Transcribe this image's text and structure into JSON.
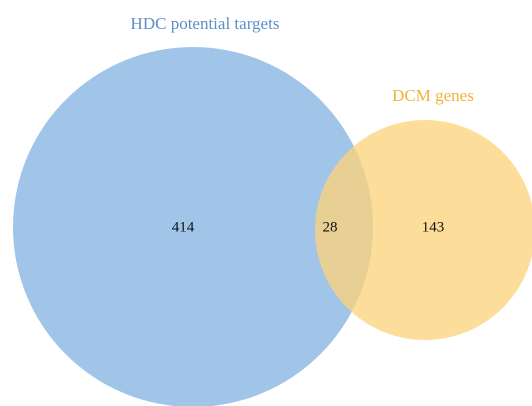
{
  "chart_data": {
    "type": "venn",
    "sets": [
      {
        "name": "HDC potential targets",
        "color": "#8fbbe4"
      },
      {
        "name": "DCM genes",
        "color": "#fdd37e"
      }
    ],
    "regions": [
      {
        "sets": [
          0
        ],
        "value": 414
      },
      {
        "sets": [
          0,
          1
        ],
        "value": 28
      },
      {
        "sets": [
          1
        ],
        "value": 143
      }
    ]
  }
}
